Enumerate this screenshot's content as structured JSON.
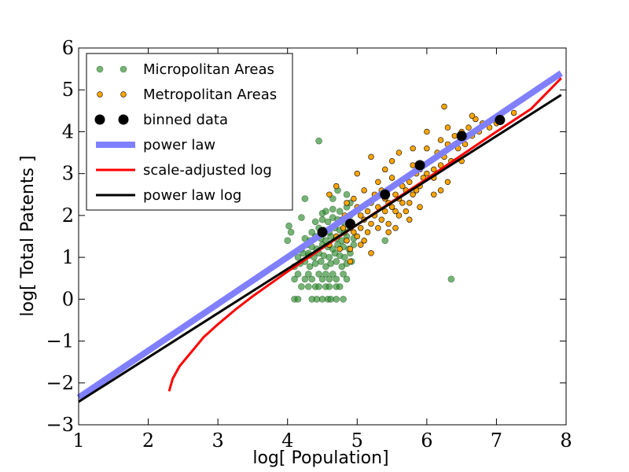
{
  "chart_data": {
    "type": "scatter",
    "title": "",
    "xlabel": "log[ Population]",
    "ylabel": "log[ Total Patents ]",
    "xlim": [
      1,
      8
    ],
    "ylim": [
      -3,
      6
    ],
    "xticks": [
      1,
      2,
      3,
      4,
      5,
      6,
      7,
      8
    ],
    "yticks": [
      -3,
      -2,
      -1,
      0,
      1,
      2,
      3,
      4,
      5,
      6
    ],
    "xtick_labels": [
      "1",
      "2",
      "3",
      "4",
      "5",
      "6",
      "7",
      "8"
    ],
    "ytick_labels": [
      "−3",
      "−2",
      "−1",
      "0",
      "1",
      "2",
      "3",
      "4",
      "5",
      "6"
    ],
    "legend_position": "top-left",
    "series": [
      {
        "name": "Micropolitan Areas",
        "kind": "scatter",
        "color": "#2e8b2e",
        "points": [
          [
            4.1,
            0.0
          ],
          [
            4.15,
            0.0
          ],
          [
            4.35,
            0.0
          ],
          [
            4.42,
            0.0
          ],
          [
            4.5,
            0.0
          ],
          [
            4.58,
            0.0
          ],
          [
            4.62,
            0.0
          ],
          [
            4.7,
            0.0
          ],
          [
            4.8,
            0.0
          ],
          [
            4.2,
            0.3
          ],
          [
            4.3,
            0.3
          ],
          [
            4.4,
            0.3
          ],
          [
            4.45,
            0.3
          ],
          [
            4.55,
            0.3
          ],
          [
            4.6,
            0.3
          ],
          [
            4.7,
            0.3
          ],
          [
            4.75,
            0.3
          ],
          [
            4.1,
            0.48
          ],
          [
            4.15,
            0.6
          ],
          [
            4.25,
            0.48
          ],
          [
            4.3,
            0.6
          ],
          [
            4.35,
            0.48
          ],
          [
            4.45,
            0.6
          ],
          [
            4.5,
            0.48
          ],
          [
            4.55,
            0.6
          ],
          [
            4.6,
            0.48
          ],
          [
            4.65,
            0.6
          ],
          [
            4.7,
            0.48
          ],
          [
            4.8,
            0.6
          ],
          [
            4.85,
            0.48
          ],
          [
            4.1,
            0.78
          ],
          [
            4.18,
            0.85
          ],
          [
            4.25,
            0.9
          ],
          [
            4.32,
            0.78
          ],
          [
            4.4,
            0.85
          ],
          [
            4.48,
            0.9
          ],
          [
            4.55,
            0.78
          ],
          [
            4.62,
            0.85
          ],
          [
            4.7,
            0.9
          ],
          [
            4.78,
            0.78
          ],
          [
            4.85,
            0.85
          ],
          [
            4.92,
            0.9
          ],
          [
            4.15,
            1.0
          ],
          [
            4.22,
            1.1
          ],
          [
            4.3,
            1.04
          ],
          [
            4.38,
            1.0
          ],
          [
            4.45,
            1.1
          ],
          [
            4.52,
            1.04
          ],
          [
            4.6,
            1.0
          ],
          [
            4.68,
            1.1
          ],
          [
            4.75,
            1.04
          ],
          [
            4.82,
            1.0
          ],
          [
            4.9,
            1.1
          ],
          [
            4.2,
            1.2
          ],
          [
            4.28,
            1.3
          ],
          [
            4.35,
            1.25
          ],
          [
            4.42,
            1.2
          ],
          [
            4.5,
            1.3
          ],
          [
            4.58,
            1.25
          ],
          [
            4.65,
            1.2
          ],
          [
            4.72,
            1.3
          ],
          [
            4.8,
            1.25
          ],
          [
            4.88,
            1.2
          ],
          [
            4.95,
            1.3
          ],
          [
            4.0,
            1.4
          ],
          [
            4.25,
            1.45
          ],
          [
            4.32,
            1.4
          ],
          [
            4.4,
            1.5
          ],
          [
            4.48,
            1.45
          ],
          [
            4.55,
            1.4
          ],
          [
            4.62,
            1.5
          ],
          [
            4.7,
            1.45
          ],
          [
            4.78,
            1.4
          ],
          [
            4.85,
            1.5
          ],
          [
            4.95,
            1.45
          ],
          [
            4.35,
            1.6
          ],
          [
            4.45,
            1.7
          ],
          [
            4.52,
            1.65
          ],
          [
            4.6,
            1.6
          ],
          [
            4.68,
            1.7
          ],
          [
            4.75,
            1.65
          ],
          [
            4.82,
            1.6
          ],
          [
            4.9,
            1.7
          ],
          [
            4.4,
            1.85
          ],
          [
            4.5,
            1.9
          ],
          [
            4.58,
            1.85
          ],
          [
            4.65,
            1.95
          ],
          [
            4.72,
            1.9
          ],
          [
            4.8,
            1.85
          ],
          [
            4.9,
            2.0
          ],
          [
            4.55,
            2.1
          ],
          [
            4.65,
            2.15
          ],
          [
            4.75,
            2.1
          ],
          [
            4.85,
            2.2
          ],
          [
            4.9,
            2.3
          ],
          [
            4.72,
            2.6
          ],
          [
            4.65,
            2.4
          ],
          [
            4.25,
            2.4
          ],
          [
            4.85,
            2.5
          ],
          [
            4.2,
            1.95
          ],
          [
            4.05,
            1.6
          ],
          [
            4.5,
            2.05
          ],
          [
            4.3,
            1.1
          ],
          [
            4.02,
            1.75
          ],
          [
            4.45,
            3.78
          ],
          [
            6.35,
            0.48
          ],
          [
            5.4,
            1.4
          ]
        ]
      },
      {
        "name": "Metropolitan Areas",
        "kind": "scatter",
        "color": "#ffa500",
        "points": [
          [
            4.6,
            1.3
          ],
          [
            4.7,
            1.5
          ],
          [
            4.75,
            1.2
          ],
          [
            4.8,
            1.7
          ],
          [
            4.85,
            1.4
          ],
          [
            4.9,
            1.8
          ],
          [
            4.95,
            1.6
          ],
          [
            4.9,
            1.2
          ],
          [
            4.82,
            2.0
          ],
          [
            4.78,
            1.9
          ],
          [
            5.0,
            1.5
          ],
          [
            5.05,
            1.7
          ],
          [
            5.1,
            1.9
          ],
          [
            5.15,
            2.1
          ],
          [
            5.2,
            1.8
          ],
          [
            5.0,
            2.2
          ],
          [
            5.05,
            2.0
          ],
          [
            5.1,
            1.4
          ],
          [
            5.15,
            1.6
          ],
          [
            5.2,
            2.3
          ],
          [
            5.25,
            2.0
          ],
          [
            5.3,
            2.2
          ],
          [
            5.35,
            1.9
          ],
          [
            5.4,
            2.4
          ],
          [
            5.3,
            1.7
          ],
          [
            5.25,
            2.5
          ],
          [
            5.35,
            2.6
          ],
          [
            5.4,
            2.1
          ],
          [
            5.45,
            2.3
          ],
          [
            5.45,
            1.8
          ],
          [
            5.5,
            2.2
          ],
          [
            5.55,
            2.5
          ],
          [
            5.6,
            2.4
          ],
          [
            5.65,
            2.7
          ],
          [
            5.5,
            2.9
          ],
          [
            5.6,
            2.0
          ],
          [
            5.55,
            2.1
          ],
          [
            5.65,
            2.3
          ],
          [
            5.7,
            2.6
          ],
          [
            5.7,
            2.1
          ],
          [
            5.75,
            2.8
          ],
          [
            5.8,
            2.5
          ],
          [
            5.85,
            3.0
          ],
          [
            5.9,
            2.7
          ],
          [
            5.75,
            2.3
          ],
          [
            5.8,
            3.2
          ],
          [
            5.9,
            3.1
          ],
          [
            5.95,
            2.9
          ],
          [
            5.85,
            2.6
          ],
          [
            6.0,
            3.0
          ],
          [
            6.05,
            3.3
          ],
          [
            6.1,
            3.1
          ],
          [
            6.15,
            3.5
          ],
          [
            6.2,
            3.2
          ],
          [
            6.0,
            3.6
          ],
          [
            6.1,
            2.9
          ],
          [
            6.2,
            3.8
          ],
          [
            6.25,
            3.4
          ],
          [
            6.3,
            3.7
          ],
          [
            6.35,
            3.3
          ],
          [
            6.4,
            3.9
          ],
          [
            6.45,
            3.6
          ],
          [
            6.5,
            4.0
          ],
          [
            6.55,
            3.7
          ],
          [
            6.6,
            4.1
          ],
          [
            6.65,
            3.9
          ],
          [
            6.7,
            4.3
          ],
          [
            6.75,
            4.0
          ],
          [
            6.8,
            4.2
          ],
          [
            6.9,
            4.1
          ],
          [
            6.25,
            4.6
          ],
          [
            6.65,
            4.38
          ],
          [
            7.0,
            4.2
          ],
          [
            7.05,
            4.35
          ],
          [
            7.25,
            4.45
          ],
          [
            5.5,
            3.3
          ],
          [
            5.3,
            2.8
          ],
          [
            5.1,
            2.6
          ],
          [
            4.95,
            2.4
          ],
          [
            4.85,
            2.3
          ],
          [
            4.6,
            2.5
          ],
          [
            4.7,
            2.7
          ],
          [
            5.0,
            3.0
          ],
          [
            5.2,
            3.4
          ],
          [
            5.4,
            3.1
          ],
          [
            5.6,
            3.5
          ],
          [
            5.8,
            3.6
          ],
          [
            6.0,
            4.0
          ],
          [
            6.3,
            4.1
          ],
          [
            6.5,
            3.3
          ],
          [
            5.75,
            1.9
          ],
          [
            5.9,
            2.2
          ],
          [
            6.1,
            2.5
          ],
          [
            6.3,
            2.8
          ],
          [
            5.45,
            1.6
          ],
          [
            5.05,
            1.3
          ],
          [
            4.9,
            0.9
          ],
          [
            5.2,
            1.1
          ],
          [
            5.55,
            1.7
          ],
          [
            6.2,
            2.6
          ]
        ]
      },
      {
        "name": "binned data",
        "kind": "marker",
        "color": "#000000",
        "points": [
          [
            4.5,
            1.6
          ],
          [
            4.9,
            1.8
          ],
          [
            5.4,
            2.5
          ],
          [
            5.9,
            3.2
          ],
          [
            6.5,
            3.9
          ],
          [
            7.05,
            4.28
          ]
        ]
      },
      {
        "name": "power law",
        "kind": "line",
        "color": "#8080ff",
        "points": [
          [
            1,
            -2.35
          ],
          [
            7.93,
            5.4
          ]
        ]
      },
      {
        "name": "scale-adjusted log",
        "kind": "line",
        "color": "#ff0000",
        "points": [
          [
            2.3,
            -2.2
          ],
          [
            2.35,
            -1.9
          ],
          [
            2.45,
            -1.6
          ],
          [
            2.6,
            -1.3
          ],
          [
            2.8,
            -0.9
          ],
          [
            3.0,
            -0.6
          ],
          [
            3.25,
            -0.25
          ],
          [
            3.5,
            0.07
          ],
          [
            4.0,
            0.66
          ],
          [
            4.5,
            1.22
          ],
          [
            5.0,
            1.78
          ],
          [
            5.5,
            2.33
          ],
          [
            6.0,
            2.88
          ],
          [
            6.5,
            3.44
          ],
          [
            7.0,
            4.0
          ],
          [
            7.5,
            4.55
          ],
          [
            7.93,
            5.28
          ]
        ]
      },
      {
        "name": "power law log",
        "kind": "line",
        "color": "#000000",
        "points": [
          [
            1,
            -2.45
          ],
          [
            7.93,
            4.88
          ]
        ]
      }
    ]
  }
}
